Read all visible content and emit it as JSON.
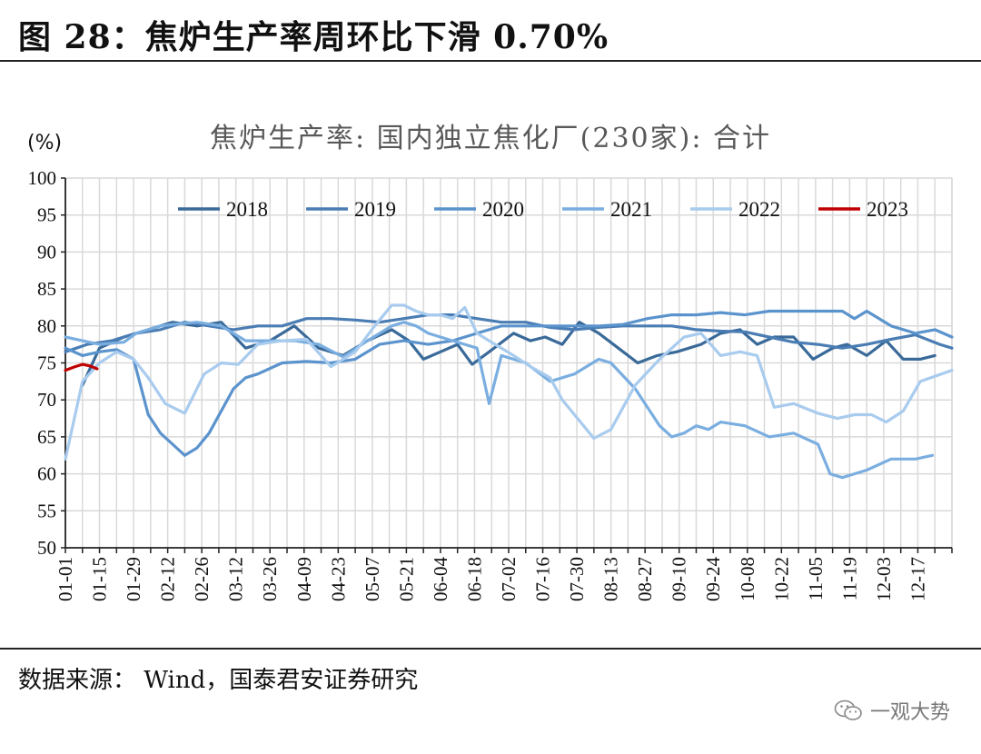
{
  "figure": {
    "title": "图 28：焦炉生产率周环比下滑 0.70%",
    "source": "数据来源： Wind，国泰君安证券研究",
    "watermark": "一观大势"
  },
  "chart_data": {
    "type": "line",
    "title": "焦炉生产率: 国内独立焦化厂(230家): 合计",
    "ylabel": "(%)",
    "ylim": [
      50,
      100
    ],
    "yticks": [
      50,
      55,
      60,
      65,
      70,
      75,
      80,
      85,
      90,
      95,
      100
    ],
    "xlim": [
      1,
      365
    ],
    "xticks": [
      {
        "label": "01-01",
        "day": 1
      },
      {
        "label": "01-15",
        "day": 15
      },
      {
        "label": "01-29",
        "day": 29
      },
      {
        "label": "02-12",
        "day": 43
      },
      {
        "label": "02-26",
        "day": 57
      },
      {
        "label": "03-12",
        "day": 71
      },
      {
        "label": "03-26",
        "day": 85
      },
      {
        "label": "04-09",
        "day": 99
      },
      {
        "label": "04-23",
        "day": 113
      },
      {
        "label": "05-07",
        "day": 127
      },
      {
        "label": "05-21",
        "day": 141
      },
      {
        "label": "06-04",
        "day": 155
      },
      {
        "label": "06-18",
        "day": 169
      },
      {
        "label": "07-02",
        "day": 183
      },
      {
        "label": "07-16",
        "day": 197
      },
      {
        "label": "07-30",
        "day": 211
      },
      {
        "label": "08-13",
        "day": 225
      },
      {
        "label": "08-27",
        "day": 239
      },
      {
        "label": "09-10",
        "day": 253
      },
      {
        "label": "09-24",
        "day": 267
      },
      {
        "label": "10-08",
        "day": 281
      },
      {
        "label": "10-22",
        "day": 295
      },
      {
        "label": "11-05",
        "day": 309
      },
      {
        "label": "11-19",
        "day": 323
      },
      {
        "label": "12-03",
        "day": 337
      },
      {
        "label": "12-17",
        "day": 351
      }
    ],
    "grid": true,
    "legend_position": "top",
    "series": [
      {
        "name": "2018",
        "color": "#3a6a99",
        "x": [
          8,
          15,
          25,
          35,
          45,
          55,
          65,
          75,
          85,
          95,
          105,
          115,
          125,
          135,
          142,
          148,
          155,
          162,
          168,
          175,
          185,
          192,
          198,
          205,
          212,
          220,
          228,
          236,
          244,
          252,
          262,
          270,
          278,
          285,
          292,
          300,
          308,
          316,
          322,
          330,
          338,
          345,
          352,
          358
        ],
        "y": [
          72,
          77,
          78.5,
          79.5,
          80.5,
          80,
          80.5,
          77,
          78,
          80,
          77,
          76,
          78,
          79.5,
          78,
          75.5,
          76.5,
          77.5,
          74.8,
          76.5,
          79,
          78,
          78.5,
          77.5,
          80.5,
          79,
          77,
          75,
          76,
          76.5,
          77.5,
          79,
          79.5,
          77.5,
          78.5,
          78.5,
          75.5,
          77,
          77.5,
          76,
          78,
          75.5,
          75.5,
          76
        ]
      },
      {
        "name": "2019",
        "color": "#4a7db4",
        "x": [
          1,
          10,
          20,
          30,
          40,
          50,
          60,
          70,
          80,
          90,
          100,
          110,
          120,
          130,
          140,
          150,
          160,
          170,
          180,
          190,
          200,
          210,
          220,
          230,
          240,
          250,
          260,
          270,
          280,
          290,
          300,
          310,
          320,
          330,
          340,
          350,
          360,
          365
        ],
        "y": [
          76.5,
          77.5,
          78,
          79,
          79.5,
          80.5,
          80,
          79.5,
          80,
          80,
          81,
          81,
          80.8,
          80.5,
          81,
          81.5,
          81.5,
          81,
          80.5,
          80.5,
          79.8,
          79.5,
          79.8,
          80,
          80,
          80,
          79.5,
          79.3,
          79.2,
          78.5,
          77.8,
          77.5,
          77,
          77.5,
          78.2,
          78.8,
          77.5,
          77
        ]
      },
      {
        "name": "2020",
        "color": "#5b93cd",
        "x": [
          1,
          8,
          15,
          22,
          29,
          35,
          40,
          45,
          50,
          55,
          60,
          65,
          70,
          75,
          80,
          90,
          100,
          110,
          120,
          130,
          140,
          150,
          160,
          165,
          170,
          180,
          190,
          200,
          210,
          220,
          230,
          240,
          250,
          260,
          270,
          280,
          290,
          300,
          310,
          320,
          325,
          330,
          340,
          350,
          358,
          365
        ],
        "y": [
          77,
          76,
          76.5,
          76.8,
          75.5,
          68,
          65.5,
          64,
          62.5,
          63.5,
          65.5,
          68.5,
          71.5,
          73,
          73.5,
          75,
          75.2,
          75,
          75.5,
          77.5,
          78,
          77.5,
          78,
          78.5,
          79,
          80,
          80,
          80,
          80,
          80,
          80.2,
          81,
          81.5,
          81.5,
          81.8,
          81.5,
          82,
          82,
          82,
          82,
          81,
          82,
          80,
          79,
          79.5,
          78.5
        ]
      },
      {
        "name": "2021",
        "color": "#7aaee0",
        "x": [
          1,
          8,
          15,
          25,
          30,
          40,
          45,
          55,
          65,
          75,
          85,
          95,
          105,
          115,
          125,
          135,
          140,
          145,
          150,
          155,
          160,
          165,
          170,
          175,
          180,
          190,
          200,
          210,
          220,
          225,
          235,
          245,
          250,
          255,
          260,
          265,
          270,
          280,
          290,
          300,
          310,
          315,
          320,
          325,
          330,
          340,
          350,
          357
        ],
        "y": [
          78.5,
          78,
          77.5,
          77.8,
          79,
          80,
          80.2,
          80.5,
          80,
          78,
          78,
          78,
          77.5,
          75.8,
          78,
          80,
          80.5,
          80,
          79,
          78.5,
          78,
          77.5,
          77,
          69.5,
          76,
          75,
          72.5,
          73.5,
          75.5,
          75,
          71.5,
          66.5,
          65,
          65.5,
          66.5,
          66,
          67,
          66.5,
          65,
          65.5,
          64,
          60,
          59.5,
          60,
          60.5,
          62,
          62,
          62.5
        ]
      },
      {
        "name": "2022",
        "color": "#a8cbee",
        "x": [
          1,
          8,
          15,
          22,
          29,
          35,
          42,
          50,
          58,
          65,
          72,
          80,
          90,
          100,
          110,
          120,
          128,
          135,
          140,
          145,
          150,
          155,
          160,
          165,
          170,
          175,
          185,
          192,
          200,
          205,
          210,
          218,
          225,
          235,
          245,
          255,
          262,
          270,
          278,
          285,
          292,
          300,
          310,
          318,
          325,
          332,
          338,
          345,
          352,
          365
        ],
        "y": [
          62,
          72.5,
          75,
          76.5,
          75.5,
          73,
          69.5,
          68.2,
          73.5,
          75,
          74.8,
          77.5,
          78,
          78.2,
          74.5,
          76.5,
          80,
          82.8,
          82.8,
          82,
          81.5,
          81.5,
          81,
          82.5,
          79,
          78,
          76,
          74.5,
          73,
          70,
          68,
          64.8,
          66,
          72,
          75.5,
          78.5,
          79,
          76,
          76.5,
          76,
          69,
          69.5,
          68.2,
          67.5,
          68,
          68,
          67,
          68.5,
          72.5,
          74
        ]
      },
      {
        "name": "2023",
        "color": "#c00000",
        "x": [
          1,
          5,
          8,
          11,
          14
        ],
        "y": [
          74,
          74.5,
          74.8,
          74.6,
          74.2
        ]
      }
    ]
  }
}
